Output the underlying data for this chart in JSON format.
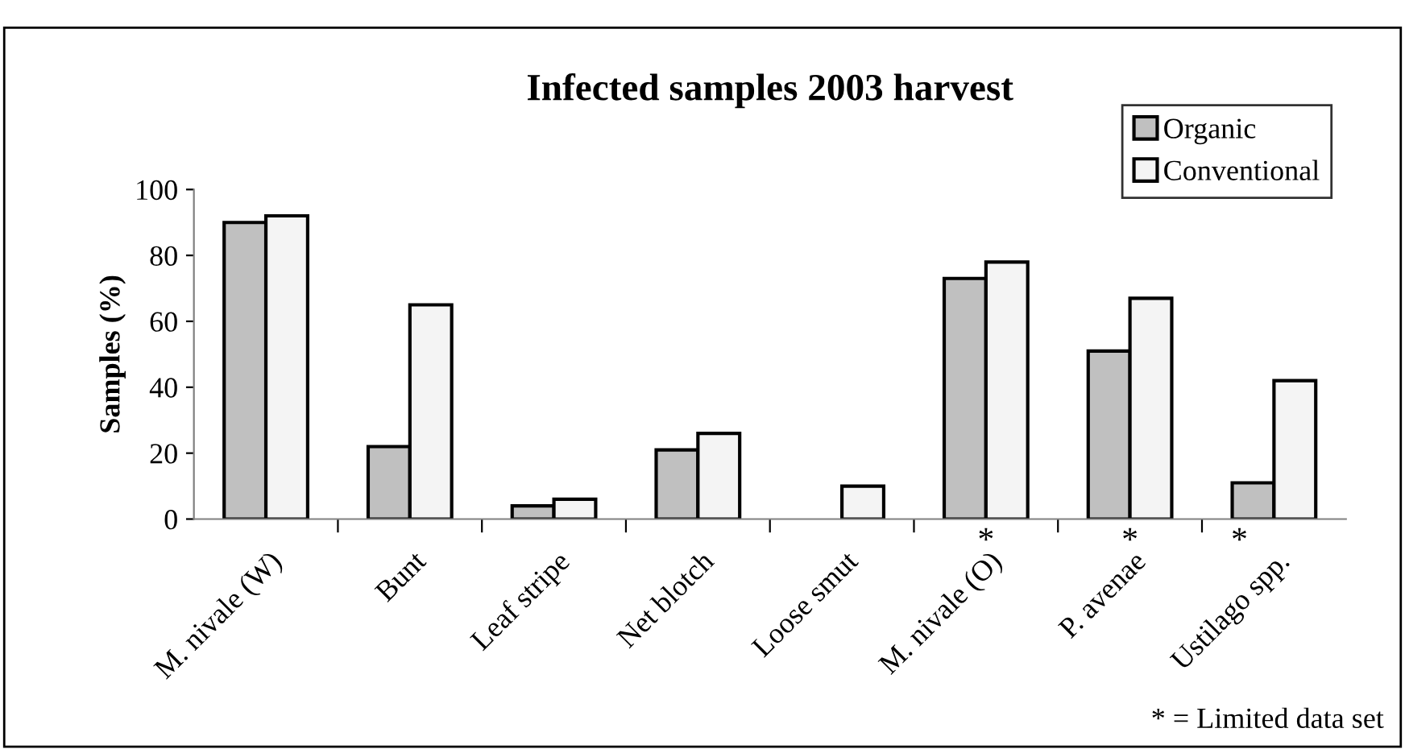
{
  "chart_data": {
    "type": "bar",
    "title": "Infected samples 2003 harvest",
    "ylabel": "Samples (%)",
    "categories": [
      "M. nivale (W)",
      "Bunt",
      "Leaf stripe",
      "Net blotch",
      "Loose smut",
      "M. nivale (O)",
      "P. avenae",
      "Ustilago spp."
    ],
    "series": [
      {
        "name": "Organic",
        "color": "#c0c0c0",
        "values": [
          90,
          22,
          4,
          21,
          null,
          73,
          51,
          11
        ]
      },
      {
        "name": "Conventional",
        "color": "#f4f4f4",
        "values": [
          92,
          65,
          6,
          26,
          10,
          78,
          67,
          42
        ]
      }
    ],
    "ylim": [
      0,
      100
    ],
    "yticks": [
      0,
      20,
      40,
      60,
      80,
      100
    ],
    "grid": false,
    "legend": "top right",
    "annotations": [
      "*",
      "*",
      "*",
      "* = Limited data set"
    ]
  }
}
